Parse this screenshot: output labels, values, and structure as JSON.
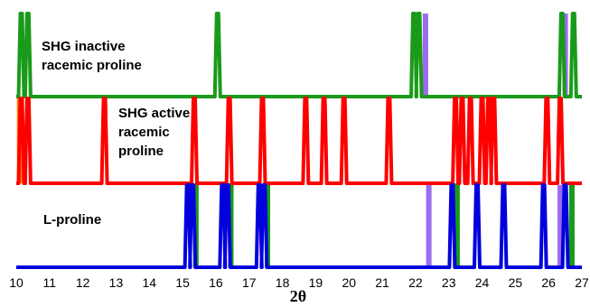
{
  "chart_data": {
    "type": "line",
    "title": "",
    "xlabel": "2θ",
    "ylabel": "",
    "xlim": [
      10,
      27
    ],
    "xticks": [
      10,
      11,
      12,
      13,
      14,
      15,
      16,
      17,
      18,
      19,
      20,
      21,
      22,
      23,
      24,
      25,
      26,
      27
    ],
    "grid": false,
    "legend": "none",
    "colors": {
      "green": "#1a9a1a",
      "red": "#ff0000",
      "blue": "#0000dd",
      "orange": "#ff7f0e",
      "purple": "#9b6bf0"
    },
    "annotations": [
      {
        "key": "inactive",
        "lines": [
          "SHG inactive",
          "racemic proline"
        ]
      },
      {
        "key": "active",
        "lines": [
          "SHG active",
          "racemic",
          "proline"
        ]
      },
      {
        "key": "lproline",
        "lines": [
          "L-proline"
        ]
      }
    ],
    "series": [
      {
        "key": "inactive",
        "color": "#1a9a1a",
        "baseline": 0,
        "peaks": [
          {
            "x": 10.15,
            "h": 1.0
          },
          {
            "x": 10.35,
            "h": 1.0
          },
          {
            "x": 16.05,
            "h": 1.0
          },
          {
            "x": 21.95,
            "h": 1.0
          },
          {
            "x": 22.1,
            "h": 1.0
          },
          {
            "x": 26.4,
            "h": 1.0
          },
          {
            "x": 26.75,
            "h": 1.0
          }
        ]
      },
      {
        "key": "active",
        "color": "#ff0000",
        "baseline": 0,
        "peaks": [
          {
            "x": 10.15,
            "h": 1.0
          },
          {
            "x": 10.35,
            "h": 1.0
          },
          {
            "x": 12.65,
            "h": 1.0
          },
          {
            "x": 15.35,
            "h": 1.0
          },
          {
            "x": 16.4,
            "h": 1.0
          },
          {
            "x": 17.4,
            "h": 1.0
          },
          {
            "x": 18.7,
            "h": 1.0
          },
          {
            "x": 19.25,
            "h": 1.0
          },
          {
            "x": 19.85,
            "h": 1.0
          },
          {
            "x": 21.2,
            "h": 1.0
          },
          {
            "x": 23.2,
            "h": 1.0
          },
          {
            "x": 23.4,
            "h": 1.0
          },
          {
            "x": 23.65,
            "h": 1.0
          },
          {
            "x": 24.0,
            "h": 1.0
          },
          {
            "x": 24.2,
            "h": 1.0
          },
          {
            "x": 24.35,
            "h": 1.0
          },
          {
            "x": 25.95,
            "h": 1.0
          },
          {
            "x": 26.35,
            "h": 1.0
          }
        ]
      },
      {
        "key": "lproline",
        "color": "#0000dd",
        "baseline": 0,
        "peaks": [
          {
            "x": 15.15,
            "h": 1.0
          },
          {
            "x": 15.3,
            "h": 1.0
          },
          {
            "x": 16.2,
            "h": 1.0
          },
          {
            "x": 16.35,
            "h": 1.0
          },
          {
            "x": 17.3,
            "h": 1.0
          },
          {
            "x": 17.45,
            "h": 1.0
          },
          {
            "x": 23.1,
            "h": 1.0
          },
          {
            "x": 23.85,
            "h": 1.0
          },
          {
            "x": 24.65,
            "h": 1.0
          },
          {
            "x": 25.85,
            "h": 1.0
          },
          {
            "x": 26.5,
            "h": 1.0
          }
        ]
      }
    ],
    "highlight_bands": [
      {
        "x": 10.1,
        "color": "#ff7f0e",
        "from": "active",
        "to": "inactive"
      },
      {
        "x": 15.4,
        "color": "#1a9a1a",
        "from": "lproline",
        "to": "active"
      },
      {
        "x": 16.45,
        "color": "#1a9a1a",
        "from": "lproline",
        "to": "active"
      },
      {
        "x": 17.55,
        "color": "#1a9a1a",
        "from": "lproline",
        "to": "active"
      },
      {
        "x": 23.25,
        "color": "#1a9a1a",
        "from": "lproline",
        "to": "active"
      },
      {
        "x": 26.7,
        "color": "#1a9a1a",
        "from": "lproline",
        "to": "active"
      },
      {
        "x": 22.4,
        "color": "#9b6bf0",
        "from": "lproline",
        "to": "lproline_top"
      },
      {
        "x": 22.3,
        "color": "#9b6bf0",
        "from": "inactive",
        "to": "inactive_top"
      },
      {
        "x": 26.35,
        "color": "#9b6bf0",
        "from": "lproline",
        "to": "lproline_top"
      },
      {
        "x": 26.5,
        "color": "#9b6bf0",
        "from": "inactive",
        "to": "inactive_top"
      }
    ]
  }
}
